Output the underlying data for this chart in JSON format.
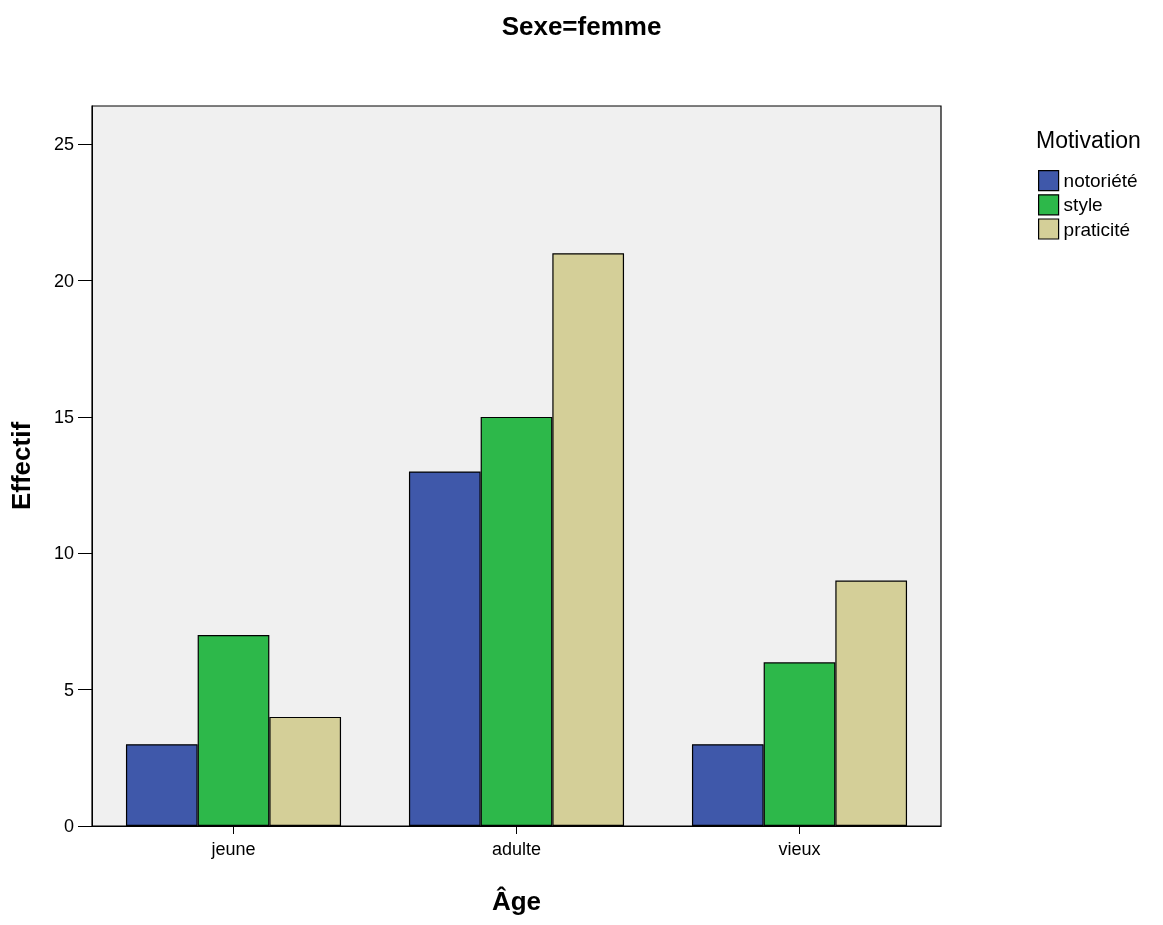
{
  "chart_data": {
    "type": "bar",
    "title": "Sexe=femme",
    "xlabel": "Âge",
    "ylabel": "Effectif",
    "legend_title": "Motivation",
    "categories": [
      "jeune",
      "adulte",
      "vieux"
    ],
    "series": [
      {
        "name": "notoriété",
        "color": "#3f58aa",
        "values": [
          3,
          13,
          3
        ]
      },
      {
        "name": "style",
        "color": "#2db84a",
        "values": [
          7,
          15,
          6
        ]
      },
      {
        "name": "praticité",
        "color": "#d4cf98",
        "values": [
          4,
          21,
          9
        ]
      }
    ],
    "ylim": [
      0,
      26.4
    ],
    "yticks": [
      0,
      5,
      10,
      15,
      20,
      25
    ],
    "grid": false,
    "legend": "right"
  }
}
